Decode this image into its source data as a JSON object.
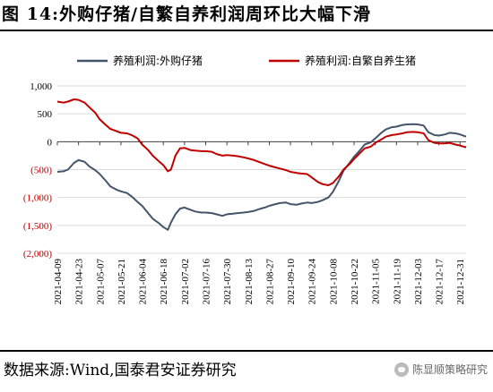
{
  "title": "图 14:外购仔猪/自繁自养利润周环比大幅下滑",
  "source": "数据来源:Wind,国泰君安证券研究",
  "watermark": "陈显顺策略研究",
  "chart_data": {
    "type": "line",
    "title": "",
    "xlabel": "",
    "ylabel": "",
    "ylim": [
      -2000,
      1000
    ],
    "yticks": [
      1000,
      500,
      0,
      -500,
      -1000,
      -1500,
      -2000
    ],
    "ytick_labels": [
      "1,000",
      "500",
      "0",
      "(500)",
      "(1,000)",
      "(1,500)",
      "(2,000)"
    ],
    "negative_tick_color": "#c00000",
    "xtick_labels": [
      "2021-04-09",
      "2021-04-23",
      "2021-05-07",
      "2021-05-21",
      "2021-06-04",
      "2021-06-18",
      "2021-07-02",
      "2021-07-16",
      "2021-07-30",
      "2021-08-13",
      "2021-08-27",
      "2021-09-10",
      "2021-09-24",
      "2021-10-08",
      "2021-10-22",
      "2021-11-05",
      "2021-11-19",
      "2021-12-03",
      "2021-12-17",
      "2021-12-31"
    ],
    "legend_position": "top",
    "series": [
      {
        "name": "养殖利润:外购仔猪",
        "color": "#44546a",
        "points": [
          [
            "2021-04-09",
            -540
          ],
          [
            "2021-04-13",
            -530
          ],
          [
            "2021-04-16",
            -500
          ],
          [
            "2021-04-20",
            -380
          ],
          [
            "2021-04-23",
            -330
          ],
          [
            "2021-04-27",
            -360
          ],
          [
            "2021-04-30",
            -440
          ],
          [
            "2021-05-04",
            -510
          ],
          [
            "2021-05-07",
            -580
          ],
          [
            "2021-05-11",
            -700
          ],
          [
            "2021-05-14",
            -800
          ],
          [
            "2021-05-18",
            -860
          ],
          [
            "2021-05-21",
            -890
          ],
          [
            "2021-05-25",
            -920
          ],
          [
            "2021-05-28",
            -980
          ],
          [
            "2021-06-01",
            -1080
          ],
          [
            "2021-06-04",
            -1150
          ],
          [
            "2021-06-08",
            -1280
          ],
          [
            "2021-06-11",
            -1380
          ],
          [
            "2021-06-15",
            -1460
          ],
          [
            "2021-06-18",
            -1530
          ],
          [
            "2021-06-21",
            -1580
          ],
          [
            "2021-06-23",
            -1450
          ],
          [
            "2021-06-26",
            -1300
          ],
          [
            "2021-06-29",
            -1200
          ],
          [
            "2021-07-02",
            -1180
          ],
          [
            "2021-07-06",
            -1220
          ],
          [
            "2021-07-09",
            -1250
          ],
          [
            "2021-07-13",
            -1270
          ],
          [
            "2021-07-16",
            -1270
          ],
          [
            "2021-07-20",
            -1280
          ],
          [
            "2021-07-23",
            -1300
          ],
          [
            "2021-07-27",
            -1330
          ],
          [
            "2021-07-30",
            -1300
          ],
          [
            "2021-08-03",
            -1290
          ],
          [
            "2021-08-06",
            -1280
          ],
          [
            "2021-08-10",
            -1270
          ],
          [
            "2021-08-13",
            -1260
          ],
          [
            "2021-08-17",
            -1240
          ],
          [
            "2021-08-20",
            -1210
          ],
          [
            "2021-08-24",
            -1180
          ],
          [
            "2021-08-27",
            -1150
          ],
          [
            "2021-08-31",
            -1120
          ],
          [
            "2021-09-03",
            -1100
          ],
          [
            "2021-09-07",
            -1090
          ],
          [
            "2021-09-10",
            -1120
          ],
          [
            "2021-09-14",
            -1130
          ],
          [
            "2021-09-17",
            -1110
          ],
          [
            "2021-09-21",
            -1090
          ],
          [
            "2021-09-24",
            -1100
          ],
          [
            "2021-09-28",
            -1080
          ],
          [
            "2021-10-01",
            -1050
          ],
          [
            "2021-10-05",
            -1000
          ],
          [
            "2021-10-08",
            -900
          ],
          [
            "2021-10-12",
            -700
          ],
          [
            "2021-10-15",
            -520
          ],
          [
            "2021-10-19",
            -380
          ],
          [
            "2021-10-22",
            -270
          ],
          [
            "2021-10-26",
            -150
          ],
          [
            "2021-10-29",
            -50
          ],
          [
            "2021-11-02",
            -10
          ],
          [
            "2021-11-05",
            60
          ],
          [
            "2021-11-09",
            160
          ],
          [
            "2021-11-12",
            220
          ],
          [
            "2021-11-16",
            260
          ],
          [
            "2021-11-19",
            270
          ],
          [
            "2021-11-23",
            300
          ],
          [
            "2021-11-26",
            310
          ],
          [
            "2021-11-30",
            315
          ],
          [
            "2021-12-03",
            310
          ],
          [
            "2021-12-07",
            290
          ],
          [
            "2021-12-10",
            170
          ],
          [
            "2021-12-14",
            120
          ],
          [
            "2021-12-17",
            110
          ],
          [
            "2021-12-21",
            130
          ],
          [
            "2021-12-24",
            160
          ],
          [
            "2021-12-28",
            150
          ],
          [
            "2021-12-31",
            130
          ],
          [
            "2022-01-04",
            90
          ]
        ]
      },
      {
        "name": "养殖利润:自繁自养生猪",
        "color": "#c00000",
        "points": [
          [
            "2021-04-09",
            720
          ],
          [
            "2021-04-13",
            700
          ],
          [
            "2021-04-16",
            720
          ],
          [
            "2021-04-20",
            760
          ],
          [
            "2021-04-23",
            750
          ],
          [
            "2021-04-27",
            700
          ],
          [
            "2021-04-30",
            620
          ],
          [
            "2021-05-04",
            520
          ],
          [
            "2021-05-07",
            400
          ],
          [
            "2021-05-11",
            300
          ],
          [
            "2021-05-14",
            230
          ],
          [
            "2021-05-18",
            190
          ],
          [
            "2021-05-21",
            160
          ],
          [
            "2021-05-25",
            150
          ],
          [
            "2021-05-28",
            120
          ],
          [
            "2021-06-01",
            60
          ],
          [
            "2021-06-04",
            -50
          ],
          [
            "2021-06-08",
            -150
          ],
          [
            "2021-06-11",
            -250
          ],
          [
            "2021-06-15",
            -350
          ],
          [
            "2021-06-18",
            -420
          ],
          [
            "2021-06-21",
            -530
          ],
          [
            "2021-06-23",
            -500
          ],
          [
            "2021-06-26",
            -250
          ],
          [
            "2021-06-29",
            -120
          ],
          [
            "2021-07-02",
            -110
          ],
          [
            "2021-07-06",
            -150
          ],
          [
            "2021-07-09",
            -160
          ],
          [
            "2021-07-13",
            -170
          ],
          [
            "2021-07-16",
            -170
          ],
          [
            "2021-07-20",
            -180
          ],
          [
            "2021-07-23",
            -220
          ],
          [
            "2021-07-27",
            -250
          ],
          [
            "2021-07-30",
            -240
          ],
          [
            "2021-08-03",
            -250
          ],
          [
            "2021-08-06",
            -260
          ],
          [
            "2021-08-10",
            -280
          ],
          [
            "2021-08-13",
            -300
          ],
          [
            "2021-08-17",
            -330
          ],
          [
            "2021-08-20",
            -360
          ],
          [
            "2021-08-24",
            -400
          ],
          [
            "2021-08-27",
            -430
          ],
          [
            "2021-08-31",
            -460
          ],
          [
            "2021-09-03",
            -480
          ],
          [
            "2021-09-07",
            -510
          ],
          [
            "2021-09-10",
            -540
          ],
          [
            "2021-09-14",
            -560
          ],
          [
            "2021-09-17",
            -570
          ],
          [
            "2021-09-21",
            -580
          ],
          [
            "2021-09-24",
            -640
          ],
          [
            "2021-09-28",
            -720
          ],
          [
            "2021-10-01",
            -760
          ],
          [
            "2021-10-05",
            -780
          ],
          [
            "2021-10-08",
            -740
          ],
          [
            "2021-10-12",
            -620
          ],
          [
            "2021-10-15",
            -500
          ],
          [
            "2021-10-19",
            -400
          ],
          [
            "2021-10-22",
            -310
          ],
          [
            "2021-10-26",
            -200
          ],
          [
            "2021-10-29",
            -120
          ],
          [
            "2021-11-02",
            -90
          ],
          [
            "2021-11-05",
            -20
          ],
          [
            "2021-11-09",
            40
          ],
          [
            "2021-11-12",
            90
          ],
          [
            "2021-11-16",
            120
          ],
          [
            "2021-11-19",
            130
          ],
          [
            "2021-11-23",
            150
          ],
          [
            "2021-11-26",
            170
          ],
          [
            "2021-11-30",
            175
          ],
          [
            "2021-12-03",
            170
          ],
          [
            "2021-12-07",
            150
          ],
          [
            "2021-12-10",
            30
          ],
          [
            "2021-12-14",
            -20
          ],
          [
            "2021-12-17",
            -30
          ],
          [
            "2021-12-21",
            -30
          ],
          [
            "2021-12-24",
            -20
          ],
          [
            "2021-12-28",
            -50
          ],
          [
            "2021-12-31",
            -70
          ],
          [
            "2022-01-04",
            -100
          ]
        ]
      }
    ]
  }
}
